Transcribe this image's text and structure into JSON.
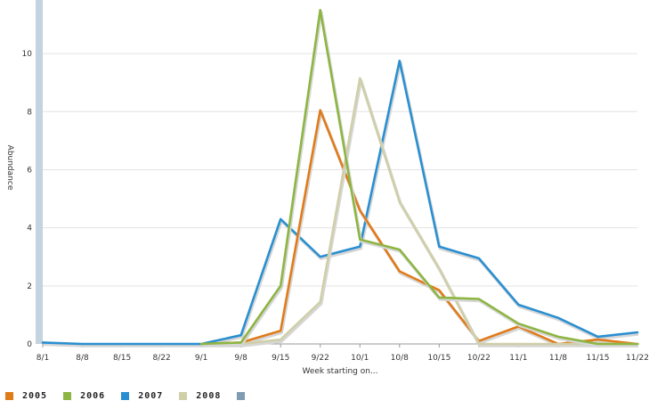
{
  "chart_data": {
    "type": "line",
    "xlabel": "Week starting on...",
    "ylabel": "Abundance",
    "ylim": [
      0,
      11.6
    ],
    "yticks": [
      0,
      2,
      4,
      6,
      8,
      10
    ],
    "categories": [
      "8/1",
      "8/8",
      "8/15",
      "8/22",
      "9/1",
      "9/8",
      "9/15",
      "9/22",
      "10/1",
      "10/8",
      "10/15",
      "10/22",
      "11/1",
      "11/8",
      "11/15",
      "11/22"
    ],
    "grid": "horizontal",
    "legend_placement": "bottom-left",
    "series": [
      {
        "name": "2005",
        "color": "#e07b1a",
        "values": [
          null,
          null,
          null,
          null,
          0,
          0.05,
          0.45,
          8.05,
          4.6,
          2.5,
          1.85,
          0.1,
          0.6,
          0,
          0.15,
          0
        ]
      },
      {
        "name": "2006",
        "color": "#8db542",
        "values": [
          null,
          null,
          null,
          null,
          0,
          0.05,
          2,
          11.5,
          3.6,
          3.25,
          1.6,
          1.55,
          0.7,
          0.25,
          0,
          0
        ]
      },
      {
        "name": "2007",
        "color": "#2a8fd0",
        "values": [
          0.05,
          0,
          0,
          0,
          0,
          0.3,
          4.3,
          3,
          3.35,
          9.75,
          3.35,
          2.95,
          1.35,
          0.9,
          0.25,
          0.4
        ]
      },
      {
        "name": "2008",
        "color": "#cfcfa8",
        "values": [
          null,
          null,
          null,
          null,
          0,
          0,
          0.15,
          1.45,
          9.15,
          4.9,
          2.6,
          0,
          0,
          0,
          0,
          0
        ]
      }
    ],
    "extra_legend_swatch_color": "#7f9cb3"
  },
  "legend": [
    {
      "label": "2005",
      "color": "#e07b1a"
    },
    {
      "label": "2006",
      "color": "#8db542"
    },
    {
      "label": "2007",
      "color": "#2a8fd0"
    },
    {
      "label": "2008",
      "color": "#cfcfa8"
    },
    {
      "label": "",
      "color": "#7f9cb3"
    }
  ]
}
